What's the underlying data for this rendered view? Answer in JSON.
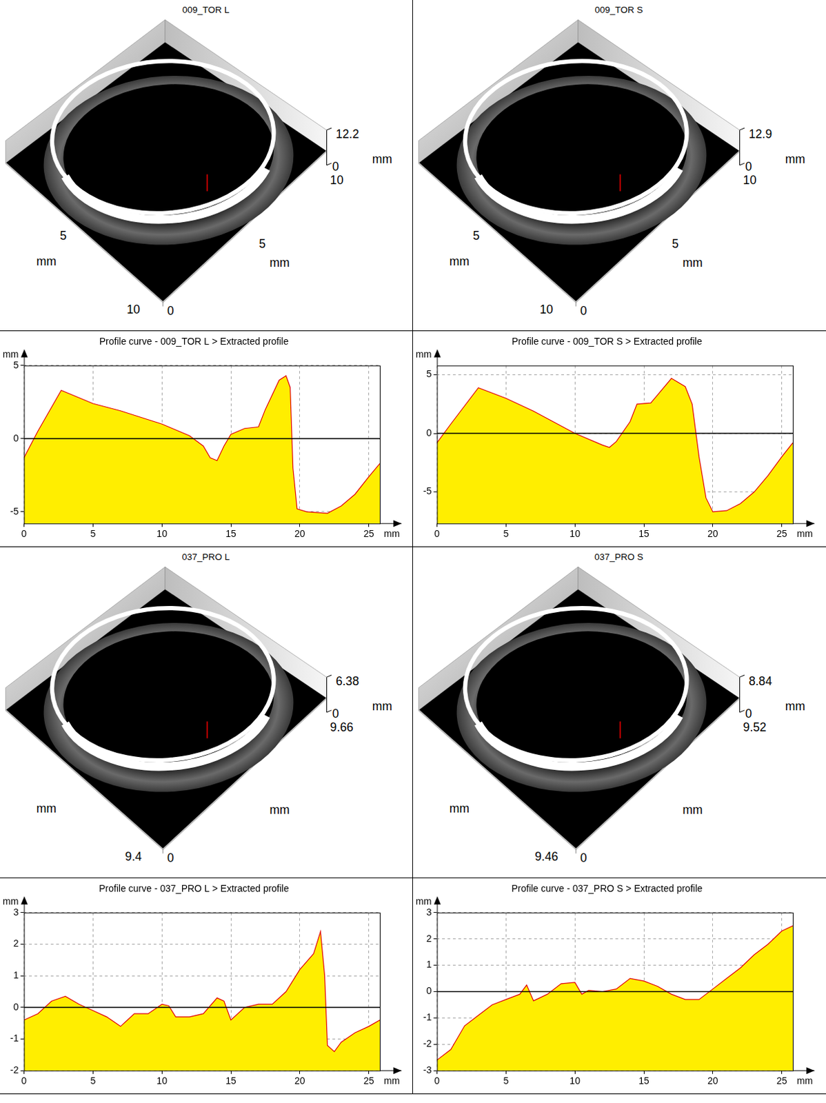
{
  "chart_data": [
    {
      "type": "area",
      "title": "Profile curve - 009_TOR L > Extracted profile",
      "xlabel": "mm",
      "ylabel": "mm",
      "color": "#ffee00",
      "grid": true,
      "x": [
        0,
        1,
        2.7,
        5,
        7,
        10,
        12,
        13,
        13.5,
        14,
        14.5,
        15,
        16,
        17,
        17.5,
        18.5,
        19,
        19.3,
        19.5,
        19.8,
        20.5,
        22,
        23,
        24,
        25,
        25.8
      ],
      "values": [
        -1.3,
        0.5,
        3.3,
        2.4,
        1.9,
        1.0,
        0.2,
        -0.5,
        -1.3,
        -1.5,
        -0.5,
        0.3,
        0.7,
        0.8,
        2.0,
        4.0,
        4.3,
        3.5,
        -2.0,
        -4.8,
        -5.0,
        -5.1,
        -4.6,
        -3.8,
        -2.6,
        -1.7
      ],
      "xlim": [
        0,
        25.8
      ],
      "xticks": [
        0,
        5,
        10,
        15,
        20,
        25
      ],
      "ylim": [
        -5.8,
        5
      ],
      "yticks": [
        -5,
        0,
        5
      ]
    },
    {
      "type": "area",
      "title": "Profile curve - 009_TOR S > Extracted profile",
      "xlabel": "mm",
      "ylabel": "mm",
      "color": "#ffee00",
      "grid": true,
      "x": [
        0,
        1,
        3,
        5,
        7,
        10,
        12,
        12.5,
        13,
        14,
        14.5,
        15.5,
        16,
        17,
        18,
        18.5,
        19,
        19.5,
        20,
        21,
        22,
        23,
        24,
        25,
        25.8
      ],
      "values": [
        -0.8,
        0.8,
        3.9,
        3.0,
        1.9,
        0.0,
        -1.0,
        -1.2,
        -0.7,
        1.0,
        2.5,
        2.6,
        3.3,
        4.7,
        4.0,
        2.5,
        -2.0,
        -5.5,
        -6.7,
        -6.6,
        -6.0,
        -5.0,
        -3.6,
        -2.0,
        -0.8
      ],
      "xlim": [
        0,
        25.8
      ],
      "xticks": [
        0,
        5,
        10,
        15,
        20,
        25
      ],
      "ylim": [
        -7.7,
        5.8
      ],
      "yticks": [
        -5,
        0,
        5
      ]
    },
    {
      "type": "area",
      "title": "Profile curve - 037_PRO L > Extracted profile",
      "xlabel": "mm",
      "ylabel": "mm",
      "color": "#ffee00",
      "grid": true,
      "x": [
        0,
        1,
        2,
        3,
        4,
        5,
        6,
        7,
        7.5,
        8,
        9,
        10,
        10.5,
        11,
        12,
        13,
        14,
        14.5,
        15,
        16,
        17,
        18,
        19,
        20,
        21,
        21.5,
        21.8,
        22,
        22.5,
        23,
        24,
        25,
        25.8
      ],
      "values": [
        -0.4,
        -0.2,
        0.2,
        0.35,
        0.1,
        -0.1,
        -0.3,
        -0.6,
        -0.4,
        -0.2,
        -0.2,
        0.1,
        0.05,
        -0.3,
        -0.3,
        -0.2,
        0.3,
        0.2,
        -0.4,
        0.0,
        0.1,
        0.1,
        0.5,
        1.2,
        1.7,
        2.4,
        1.0,
        -1.2,
        -1.4,
        -1.1,
        -0.8,
        -0.6,
        -0.4
      ],
      "xlim": [
        0,
        25.8
      ],
      "xticks": [
        0,
        5,
        10,
        15,
        20,
        25
      ],
      "ylim": [
        -2,
        3
      ],
      "yticks": [
        -2,
        -1,
        0,
        1,
        2,
        3
      ]
    },
    {
      "type": "area",
      "title": "Profile curve - 037_PRO S > Extracted profile",
      "xlabel": "mm",
      "ylabel": "mm",
      "color": "#ffee00",
      "grid": true,
      "x": [
        0,
        1,
        2,
        3,
        4,
        5,
        6,
        6.5,
        7,
        8,
        9,
        10,
        10.5,
        11,
        12,
        13,
        14,
        15,
        16,
        17,
        18,
        19,
        20,
        21,
        22,
        23,
        24,
        25,
        25.8
      ],
      "values": [
        -2.6,
        -2.2,
        -1.3,
        -0.9,
        -0.5,
        -0.3,
        -0.1,
        0.25,
        -0.35,
        -0.1,
        0.3,
        0.35,
        -0.1,
        0.05,
        0.0,
        0.1,
        0.5,
        0.4,
        0.2,
        -0.1,
        -0.3,
        -0.3,
        0.1,
        0.5,
        0.9,
        1.4,
        1.8,
        2.3,
        2.5
      ],
      "xlim": [
        0,
        25.8
      ],
      "xticks": [
        0,
        5,
        10,
        15,
        20,
        25
      ],
      "ylim": [
        -3,
        3
      ],
      "yticks": [
        -3,
        -2,
        -1,
        0,
        1,
        2,
        3
      ]
    }
  ],
  "surface_views": [
    {
      "title": "009_TOR L",
      "z_axis": {
        "max": "12.2",
        "min": "0",
        "unit": "mm"
      },
      "right_edge": {
        "ticks": [
          "5"
        ],
        "end": "10",
        "unit": "mm"
      },
      "left_edge": {
        "ticks": [
          "5"
        ],
        "end": "10",
        "unit": "mm"
      },
      "origin": "0"
    },
    {
      "title": "009_TOR S",
      "z_axis": {
        "max": "12.9",
        "min": "0",
        "unit": "mm"
      },
      "right_edge": {
        "ticks": [
          "5"
        ],
        "end": "10",
        "unit": "mm"
      },
      "left_edge": {
        "ticks": [
          "5"
        ],
        "end": "10",
        "unit": "mm"
      },
      "origin": "0"
    },
    {
      "title": "037_PRO L",
      "z_axis": {
        "max": "6.38",
        "min": "0",
        "unit": "mm"
      },
      "right_edge": {
        "ticks": [],
        "end": "9.66",
        "unit": "mm"
      },
      "left_edge": {
        "ticks": [],
        "end": "9.4",
        "unit": "mm"
      },
      "origin": "0"
    },
    {
      "title": "037_PRO S",
      "z_axis": {
        "max": "8.84",
        "min": "0",
        "unit": "mm"
      },
      "right_edge": {
        "ticks": [],
        "end": "9.52",
        "unit": "mm"
      },
      "left_edge": {
        "ticks": [],
        "end": "9.46",
        "unit": "mm"
      },
      "origin": "0"
    }
  ]
}
